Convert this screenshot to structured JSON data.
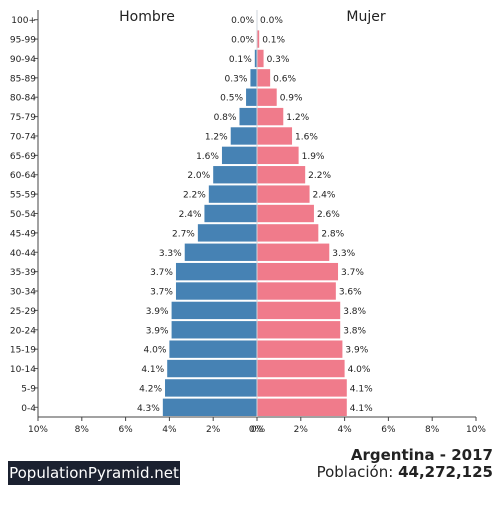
{
  "chart_data": {
    "type": "bar",
    "orientation": "horizontal",
    "left_label": "Hombre",
    "right_label": "Mujer",
    "categories": [
      "0-4",
      "5-9",
      "10-14",
      "15-19",
      "20-24",
      "25-29",
      "30-34",
      "35-39",
      "40-44",
      "45-49",
      "50-54",
      "55-59",
      "60-64",
      "65-69",
      "70-74",
      "75-79",
      "80-84",
      "85-89",
      "90-94",
      "95-99",
      "100+"
    ],
    "series": [
      {
        "name": "Hombre",
        "color": "#4682b4",
        "values": [
          4.3,
          4.2,
          4.1,
          4.0,
          3.9,
          3.9,
          3.7,
          3.7,
          3.3,
          2.7,
          2.4,
          2.2,
          2.0,
          1.6,
          1.2,
          0.8,
          0.5,
          0.3,
          0.1,
          0.0,
          0.0
        ],
        "labels": [
          "4.3%",
          "4.2%",
          "4.1%",
          "4.0%",
          "3.9%",
          "3.9%",
          "3.7%",
          "3.7%",
          "3.3%",
          "2.7%",
          "2.4%",
          "2.2%",
          "2.0%",
          "1.6%",
          "1.2%",
          "0.8%",
          "0.5%",
          "0.3%",
          "0.1%",
          "0.0%",
          "0.0%"
        ]
      },
      {
        "name": "Mujer",
        "color": "#f07b8b",
        "values": [
          4.1,
          4.1,
          4.0,
          3.9,
          3.8,
          3.8,
          3.6,
          3.7,
          3.3,
          2.8,
          2.6,
          2.4,
          2.2,
          1.9,
          1.6,
          1.2,
          0.9,
          0.6,
          0.3,
          0.1,
          0.0
        ],
        "labels": [
          "4.1%",
          "4.1%",
          "4.0%",
          "3.9%",
          "3.8%",
          "3.8%",
          "3.6%",
          "3.7%",
          "3.3%",
          "2.8%",
          "2.6%",
          "2.4%",
          "2.2%",
          "1.9%",
          "1.6%",
          "1.2%",
          "0.9%",
          "0.6%",
          "0.3%",
          "0.1%",
          "0.0%"
        ]
      }
    ],
    "xlim": [
      0,
      10
    ],
    "left_ticks": [
      "10%",
      "8%",
      "6%",
      "4%",
      "2%",
      "0%"
    ],
    "right_ticks": [
      "0%",
      "2%",
      "4%",
      "6%",
      "8%",
      "10%"
    ],
    "grid": false
  },
  "footer": {
    "brand": "PopulationPyramid.net",
    "country": "Argentina - 2017",
    "population_label": "Población:",
    "population_value": "44,272,125"
  }
}
